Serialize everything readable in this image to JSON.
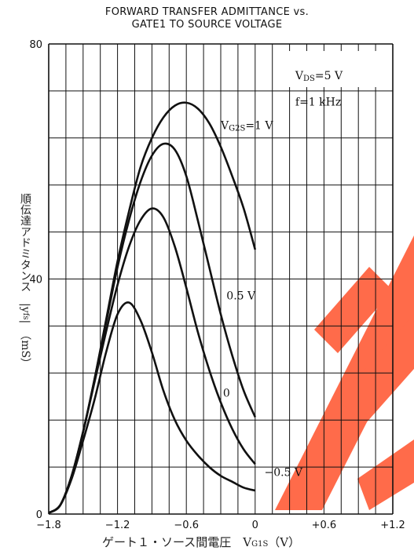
{
  "chart_data": {
    "type": "line",
    "title": "FORWARD TRANSFER ADMITTANCE vs.\nGATE1 TO SOURCE VOLTAGE",
    "title_lines": [
      "FORWARD TRANSFER ADMITTANCE vs.",
      "GATE1 TO SOURCE VOLTAGE"
    ],
    "xlabel": "ゲート１・ソース間電圧　V",
    "xlabel_sub": "G1S",
    "xlabel_unit": "（V）",
    "ylabel": "順伝達アドミタンス　|y",
    "ylabel_sub": "fs",
    "ylabel_unit": "|　（mS）",
    "xlim": [
      -1.8,
      1.2
    ],
    "ylim": [
      0,
      80
    ],
    "x_tick_labels": [
      "−1.8",
      "−1.2",
      "−0.6",
      "0",
      "+0.6",
      "+1.2"
    ],
    "x_tick_values": [
      -1.8,
      -1.2,
      -0.6,
      0,
      0.6,
      1.2
    ],
    "y_tick_labels": [
      "0",
      "40",
      "80"
    ],
    "y_tick_values": [
      0,
      40,
      80
    ],
    "grid": true,
    "conditions": {
      "line1_main": "V",
      "line1_sub": "DS",
      "line1_rest": "=5 V",
      "line2": "f=1 kHz"
    },
    "series": [
      {
        "name": "V_G2S=1 V",
        "label_parts": {
          "main": "V",
          "sub": "G2S",
          "rest": "=1 V"
        },
        "x": [
          -1.8,
          -1.7,
          -1.6,
          -1.5,
          -1.4,
          -1.3,
          -1.2,
          -1.1,
          -1.0,
          -0.9,
          -0.8,
          -0.7,
          -0.6,
          -0.5,
          -0.4,
          -0.3,
          -0.2,
          -0.1,
          0.0
        ],
        "y": [
          0.2,
          1.5,
          6.5,
          14.0,
          23.0,
          33.0,
          43.0,
          51.5,
          59.0,
          64.0,
          67.5,
          69.5,
          70.0,
          69.0,
          66.5,
          62.5,
          57.5,
          52.0,
          45.0
        ]
      },
      {
        "name": "0.5 V",
        "label_parts": {
          "main": "0.5 V"
        },
        "x": [
          -1.8,
          -1.7,
          -1.6,
          -1.5,
          -1.4,
          -1.3,
          -1.2,
          -1.1,
          -1.0,
          -0.9,
          -0.8,
          -0.7,
          -0.6,
          -0.5,
          -0.4,
          -0.3,
          -0.2,
          -0.1,
          0.0
        ],
        "y": [
          0.2,
          1.5,
          6.5,
          14.0,
          23.0,
          32.5,
          42.0,
          50.0,
          56.5,
          61.0,
          63.0,
          62.0,
          57.5,
          50.0,
          42.0,
          34.0,
          27.0,
          21.0,
          16.5
        ]
      },
      {
        "name": "0",
        "label_parts": {
          "main": "0"
        },
        "x": [
          -1.8,
          -1.7,
          -1.6,
          -1.5,
          -1.4,
          -1.3,
          -1.2,
          -1.1,
          -1.0,
          -0.9,
          -0.8,
          -0.7,
          -0.6,
          -0.5,
          -0.4,
          -0.3,
          -0.2,
          -0.1,
          0.0
        ],
        "y": [
          0.2,
          1.5,
          6.5,
          14.0,
          22.5,
          31.0,
          39.0,
          45.5,
          50.0,
          52.0,
          50.5,
          45.5,
          38.5,
          31.0,
          24.5,
          19.0,
          14.5,
          11.0,
          8.5
        ]
      },
      {
        "name": "−0.5 V",
        "label_parts": {
          "main": "−0.5 V"
        },
        "x": [
          -1.8,
          -1.7,
          -1.6,
          -1.5,
          -1.4,
          -1.3,
          -1.2,
          -1.1,
          -1.0,
          -0.9,
          -0.8,
          -0.7,
          -0.6,
          -0.5,
          -0.4,
          -0.3,
          -0.2,
          -0.1,
          0.0
        ],
        "y": [
          0.2,
          1.5,
          6.0,
          12.5,
          19.5,
          27.5,
          34.0,
          36.0,
          33.0,
          27.5,
          21.0,
          16.0,
          12.5,
          10.0,
          8.0,
          6.5,
          5.5,
          4.5,
          4.0
        ]
      }
    ],
    "colors": {
      "line": "#111111",
      "grid": "#111111",
      "watermark": "#ff6b4a"
    }
  }
}
